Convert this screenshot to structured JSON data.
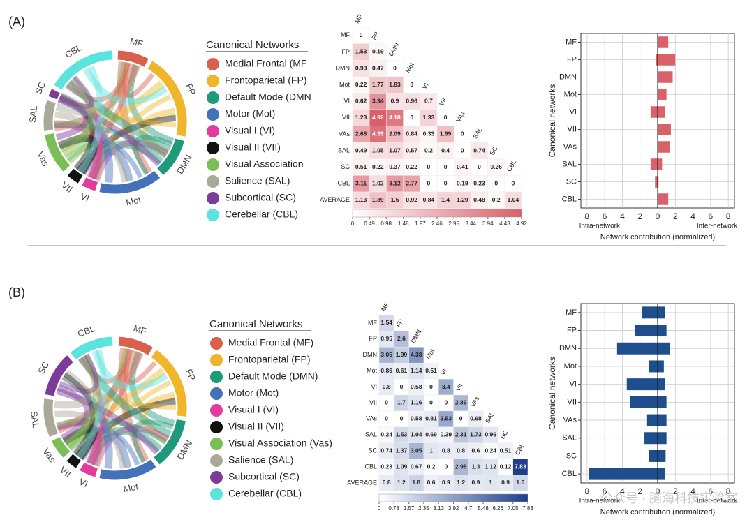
{
  "panel_labels": [
    "(A)",
    "(B)"
  ],
  "watermark": "公众号 · 脑海科技实验室",
  "chart_data": [
    {
      "type": "chord",
      "labels": [
        "MF",
        "FP",
        "DMN",
        "Mot",
        "VI",
        "VII",
        "Vas",
        "SAL",
        "SC",
        "CBL"
      ],
      "colors": [
        "#d9604c",
        "#f0b52a",
        "#1e9a7a",
        "#4472b8",
        "#e23b9c",
        "#111111",
        "#7bbd57",
        "#a9a899",
        "#7b3c99",
        "#5be3e0"
      ],
      "legend_title": "Canonical Networks",
      "legend": [
        "Medial Frontal (MF",
        "Frontoparietal (FP)",
        "Default Mode (DMN",
        "Motor (Mot)",
        "Visual I (VI)",
        "Visual II (VII)",
        "Visual Association",
        "Salience (SAL)",
        "Subcortical (SC)",
        "Cerebellar (CBL)"
      ]
    },
    {
      "type": "heatmap",
      "columns": [
        "MF",
        "FP",
        "DMN",
        "Mot",
        "VI",
        "VII",
        "VAs",
        "SAL",
        "SC",
        "CBL"
      ],
      "rows": [
        "MF",
        "FP",
        "DMN",
        "Mot",
        "VI",
        "VII",
        "VAs",
        "SAL",
        "SC",
        "CBL",
        "AVERAGE"
      ],
      "values": [
        [
          0
        ],
        [
          1.53,
          0.19
        ],
        [
          0.93,
          0.47,
          0
        ],
        [
          0.22,
          1.77,
          1.83,
          0
        ],
        [
          0.62,
          3.34,
          0.9,
          0.96,
          0.7
        ],
        [
          1.23,
          4.92,
          4.18,
          0,
          1.33,
          0
        ],
        [
          2.68,
          4.39,
          2.09,
          0.84,
          0.33,
          1.99,
          0
        ],
        [
          0.49,
          1.05,
          1.07,
          0.57,
          0.2,
          0.4,
          0,
          0.74
        ],
        [
          0.51,
          0.22,
          0.37,
          0.22,
          0,
          0,
          0.41,
          0,
          0.26
        ],
        [
          3.11,
          1.02,
          3.12,
          2.77,
          0,
          0,
          0.19,
          0.23,
          0,
          0
        ],
        [
          1.13,
          1.89,
          1.5,
          0.92,
          0.84,
          1.4,
          1.29,
          0.48,
          0.2,
          1.04
        ]
      ],
      "clim": [
        0,
        4.92
      ],
      "cticks": [
        0,
        0.49,
        0.98,
        1.48,
        1.97,
        2.46,
        2.95,
        3.44,
        3.94,
        4.43,
        4.92
      ],
      "color": "#d9606a"
    },
    {
      "type": "bar",
      "orientation": "horizontal",
      "ylabel": "Canonical networks",
      "xlabel": "Network contribution (normalized)",
      "annotations": [
        "Intra-network",
        "Inter-network"
      ],
      "categories": [
        "MF",
        "FP",
        "DMN",
        "Mot",
        "VI",
        "VII",
        "VAs",
        "SAL",
        "SC",
        "CBL"
      ],
      "series": [
        {
          "color": "#d9626a",
          "values": [
            0,
            -0.2,
            0,
            0,
            -0.8,
            0,
            0,
            -0.8,
            -0.3,
            0
          ]
        },
        {
          "color": "#d9626a",
          "values": [
            1.2,
            2.0,
            1.7,
            1.0,
            0.8,
            1.5,
            1.4,
            0.5,
            0.1,
            1.2
          ]
        }
      ],
      "xlim": [
        -8.7,
        8.7
      ],
      "xticks": [
        {
          "value": -8,
          "label": "8"
        },
        {
          "value": -6,
          "label": "6"
        },
        {
          "value": -4,
          "label": "4"
        },
        {
          "value": -2,
          "label": "2"
        },
        0,
        2,
        4,
        6,
        8
      ],
      "grid": true
    },
    {
      "type": "chord",
      "labels": [
        "MF",
        "FP",
        "DMN",
        "Mot",
        "VI",
        "VII",
        "Vas",
        "SAL",
        "SC",
        "CBL"
      ],
      "colors": [
        "#d9604c",
        "#f0b52a",
        "#1e9a7a",
        "#4472b8",
        "#e23b9c",
        "#111111",
        "#7bbd57",
        "#a9a899",
        "#7b3c99",
        "#5be3e0"
      ],
      "legend_title": "Canonical Networks",
      "legend": [
        "Medial Frontal (MF)",
        "Frontoparietal (FP)",
        "Default Mode (DMN)",
        "Motor (Mot)",
        "Visual I (VI)",
        "Visual II (VII)",
        "Visual Association (Vas)",
        "Salience (SAL)",
        "Subcortical (SC)",
        "Cerebellar (CBL)"
      ]
    },
    {
      "type": "heatmap",
      "columns": [
        "MF",
        "FP",
        "DMN",
        "Mot",
        "VI",
        "VII",
        "VAs",
        "SAL",
        "SC",
        "CBL"
      ],
      "rows": [
        "MF",
        "FP",
        "DMN",
        "Mot",
        "VI",
        "VII",
        "VAs",
        "SAL",
        "SC",
        "CBL",
        "AVERAGE"
      ],
      "values": [
        [
          1.54
        ],
        [
          0.95,
          2.6
        ],
        [
          3.05,
          1.99,
          4.38
        ],
        [
          0.86,
          0.61,
          1.14,
          0.51
        ],
        [
          0.8,
          0,
          0.58,
          0,
          3.4
        ],
        [
          0,
          1.7,
          1.16,
          0,
          0,
          2.89
        ],
        [
          0,
          0,
          0.58,
          0.81,
          3.53,
          0,
          0.68
        ],
        [
          0.24,
          1.53,
          1.04,
          0.69,
          0.39,
          2.31,
          1.73,
          0.96
        ],
        [
          0.74,
          1.37,
          3.05,
          1,
          0.8,
          0.8,
          0.6,
          0.24,
          0.51
        ],
        [
          0.23,
          1.09,
          0.67,
          0.2,
          0,
          2.98,
          1.3,
          1.12,
          0.12,
          7.83
        ],
        [
          0.8,
          1.2,
          1.8,
          0.6,
          0.9,
          1.2,
          0.9,
          1,
          0.9,
          1.6
        ]
      ],
      "clim": [
        0,
        7.83
      ],
      "cticks": [
        0,
        0.78,
        1.57,
        2.35,
        3.13,
        3.92,
        4.7,
        5.48,
        6.26,
        7.05,
        7.83
      ],
      "color": "#1f3f8c"
    },
    {
      "type": "bar",
      "orientation": "horizontal",
      "ylabel": "Canonical networks",
      "xlabel": "Network contribution (normalized)",
      "annotations": [
        "Intra-network",
        "Inter-network"
      ],
      "categories": [
        "MF",
        "FP",
        "DMN",
        "Mot",
        "VI",
        "VII",
        "VAs",
        "SAL",
        "SC",
        "CBL"
      ],
      "series": [
        {
          "color": "#1f4e8c",
          "values": [
            -1.8,
            -2.6,
            -4.6,
            -1.0,
            -3.5,
            -3.1,
            -1.2,
            -1.5,
            -1.0,
            -7.8
          ]
        },
        {
          "color": "#1f4e8c",
          "values": [
            0.8,
            1.0,
            1.4,
            0.7,
            0.8,
            1.0,
            1.0,
            1.0,
            0.9,
            0.8
          ]
        }
      ],
      "xlim": [
        -8.7,
        8.7
      ],
      "xticks": [
        {
          "value": -8,
          "label": "8"
        },
        {
          "value": -6,
          "label": "6"
        },
        {
          "value": -4,
          "label": "4"
        },
        {
          "value": -2,
          "label": "2"
        },
        0,
        2,
        4,
        6,
        8
      ],
      "grid": true
    }
  ]
}
